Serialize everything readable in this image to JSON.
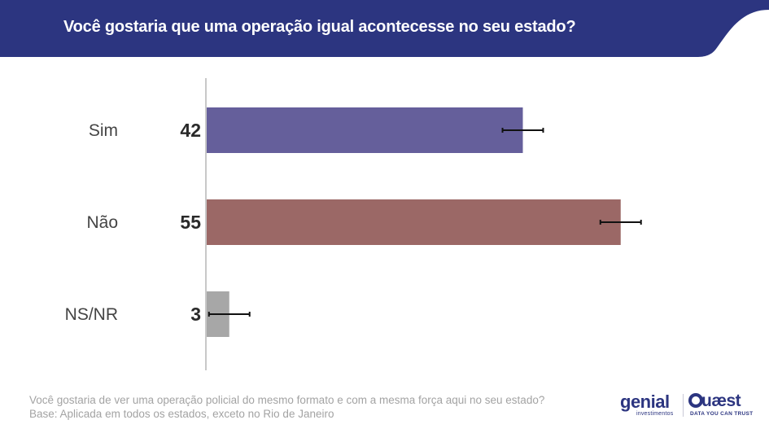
{
  "header": {
    "title": "Você gostaria que uma operação igual acontecesse no seu estado?",
    "band_color": "#2c3580"
  },
  "chart_data": {
    "type": "bar",
    "orientation": "horizontal",
    "title": "Você gostaria que uma operação igual acontecesse no seu estado?",
    "categories": [
      "Sim",
      "Não",
      "NS/NR"
    ],
    "values": [
      42,
      55,
      3
    ],
    "error_margin": 2.7,
    "colors": [
      "#655f9b",
      "#9b6866",
      "#a7a7a7"
    ],
    "xlim": [
      0,
      60
    ],
    "unit": "%"
  },
  "footnote": {
    "question": "Você gostaria de ver uma operação policial do mesmo formato e com a mesma força aqui no seu estado?",
    "base": "Base: Aplicada em todos os estados, exceto no Rio de Janeiro"
  },
  "logos": {
    "genial": "genial",
    "genial_sub": "investimentos",
    "quaest": "uæst",
    "quaest_sub": "DATA YOU CAN TRUST"
  }
}
